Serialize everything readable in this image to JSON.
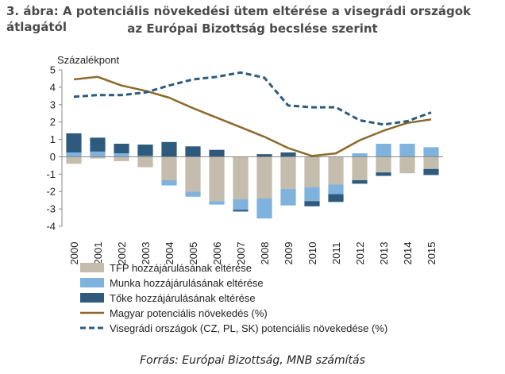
{
  "figure": {
    "title_line1": "3. ábra: A potenciális növekedési ütem eltérése a visegrádi országok átlagától",
    "title_line2": "az Európai Bizottság becslése szerint",
    "source": "Forrás: Európai Bizottság, MNB számítás"
  },
  "chart_data": {
    "type": "bar",
    "stacked": true,
    "ylabel": "Százalékpont",
    "ylim": [
      -4,
      5
    ],
    "yticks": [
      5,
      4,
      3,
      2,
      1,
      0,
      -1,
      -2,
      -3,
      -4
    ],
    "categories": [
      "2000",
      "2001",
      "2002",
      "2003",
      "2004",
      "2005",
      "2006",
      "2007",
      "2008",
      "2009",
      "2010",
      "2011",
      "2012",
      "2013",
      "2014",
      "2015"
    ],
    "series": [
      {
        "name": "TFP hozzájárulásának eltérése",
        "kind": "bar",
        "color": "#c4bcac",
        "values": [
          -0.4,
          -0.1,
          -0.25,
          -0.6,
          -1.35,
          -2.0,
          -2.55,
          -2.45,
          -2.4,
          -1.85,
          -1.75,
          -1.6,
          -1.35,
          -0.9,
          -0.95,
          -0.7
        ]
      },
      {
        "name": "Munka hozzájárulásának eltérése",
        "kind": "bar",
        "color": "#7fb2dc",
        "values": [
          0.25,
          0.3,
          0.2,
          0.05,
          -0.3,
          -0.3,
          -0.2,
          -0.6,
          -1.15,
          -0.95,
          -0.8,
          -0.55,
          0.2,
          0.75,
          0.75,
          0.55
        ]
      },
      {
        "name": "Tőke hozzájárulásának eltérése",
        "kind": "bar",
        "color": "#2e5a7e",
        "values": [
          1.1,
          0.8,
          0.55,
          0.65,
          0.85,
          0.6,
          0.4,
          -0.1,
          0.15,
          0.25,
          -0.3,
          -0.45,
          -0.2,
          -0.2,
          0.0,
          -0.35
        ]
      },
      {
        "name": "Magyar potenciális növekedés (%)",
        "kind": "line",
        "color": "#8b6a2b",
        "values": [
          4.45,
          4.6,
          4.1,
          3.8,
          3.4,
          2.8,
          2.25,
          1.7,
          1.15,
          0.5,
          0.05,
          0.2,
          0.95,
          1.5,
          1.95,
          2.15
        ]
      },
      {
        "name": "Visegrádi országok (CZ, PL, SK) potenciális növekedése (%)",
        "kind": "line",
        "dashed": true,
        "color": "#2e5a7e",
        "values": [
          3.45,
          3.55,
          3.55,
          3.7,
          4.1,
          4.45,
          4.6,
          4.85,
          4.55,
          2.95,
          2.85,
          2.85,
          2.1,
          1.85,
          2.05,
          2.55
        ]
      }
    ]
  }
}
